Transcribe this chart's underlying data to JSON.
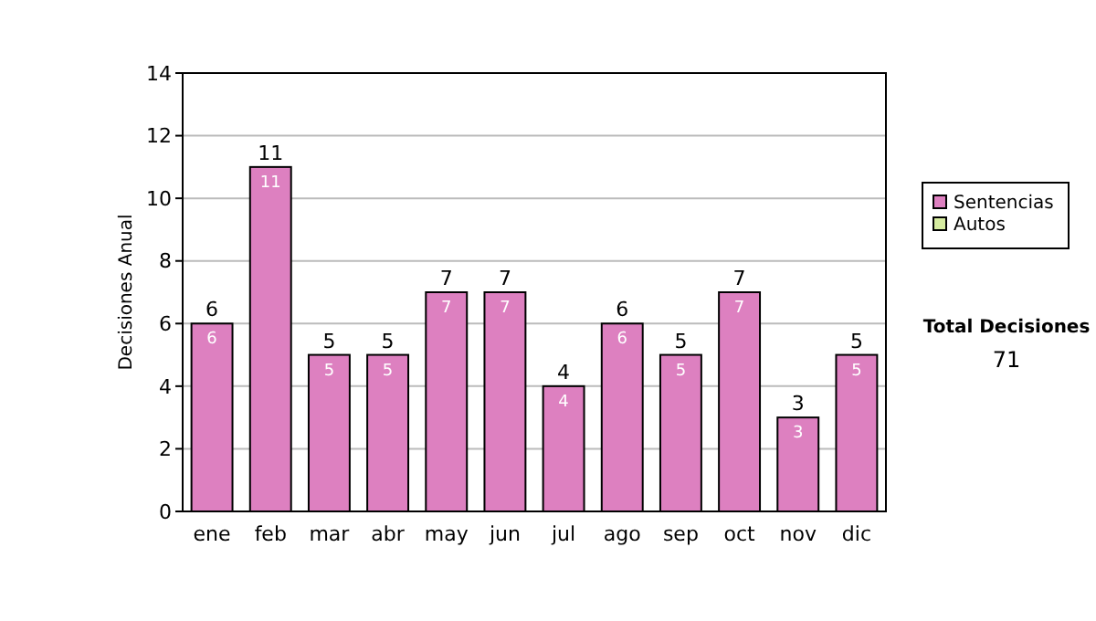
{
  "chart_data": {
    "type": "bar",
    "ylabel": "Decisiones Anual",
    "categories": [
      "ene",
      "feb",
      "mar",
      "abr",
      "may",
      "jun",
      "jul",
      "ago",
      "sep",
      "oct",
      "nov",
      "dic"
    ],
    "series": [
      {
        "name": "Sentencias",
        "color": "#dd80c0",
        "values": [
          6,
          11,
          5,
          5,
          7,
          7,
          4,
          6,
          5,
          7,
          3,
          5
        ],
        "value_labels": [
          "6",
          "11",
          "5",
          "5",
          "7",
          "7",
          "4",
          "6",
          "5",
          "7",
          "3",
          "5"
        ]
      },
      {
        "name": "Autos",
        "color": "#d6eca0",
        "values": [
          0,
          0,
          0,
          0,
          0,
          0,
          0,
          0,
          0,
          0,
          0,
          0
        ],
        "value_labels": [
          null,
          null,
          null,
          null,
          null,
          null,
          null,
          null,
          null,
          null,
          null,
          null
        ]
      }
    ],
    "stacked": true,
    "totals": [
      "6",
      "11",
      "5",
      "5",
      "7",
      "7",
      "4",
      "6",
      "5",
      "7",
      "3",
      "5"
    ],
    "ylim": [
      0,
      14
    ],
    "yticks": [
      0,
      2,
      4,
      6,
      8,
      10,
      12,
      14
    ],
    "grid": "y",
    "legend": "right",
    "annotations": [
      "Total Decisiones",
      "71"
    ]
  }
}
